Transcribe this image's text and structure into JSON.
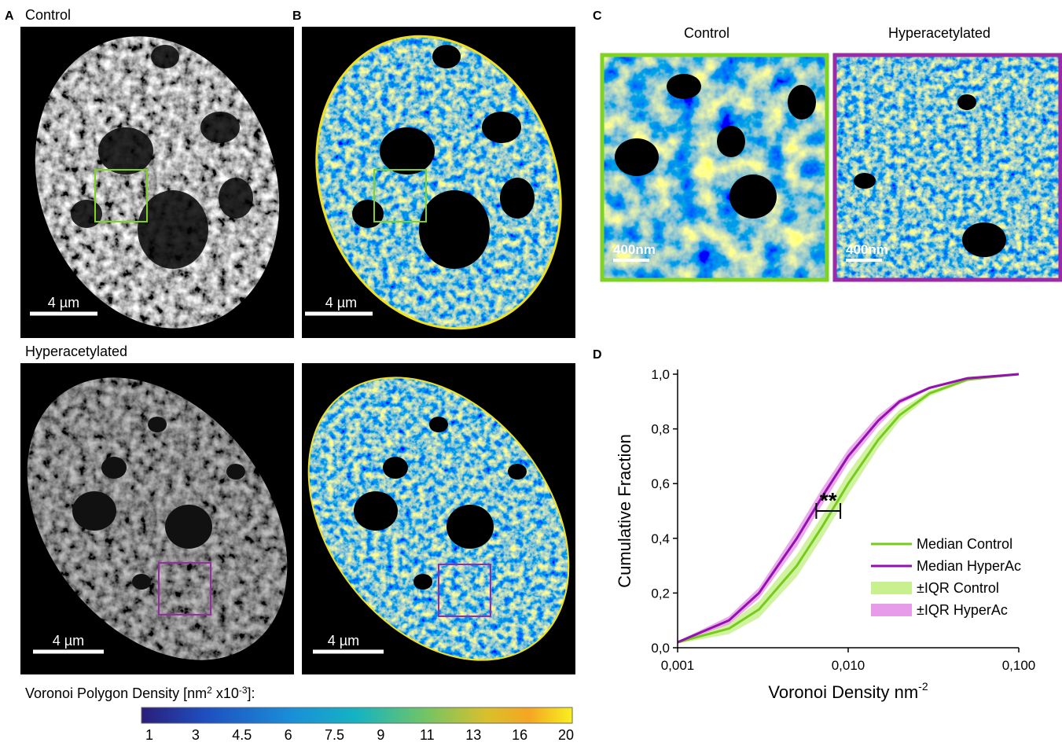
{
  "figure": {
    "panel_labels": [
      "A",
      "B",
      "C",
      "D"
    ],
    "row_labels": [
      "Control",
      "Hyperacetylated"
    ],
    "scale_bars": [
      "4 µm",
      "4 µm",
      "4 µm",
      "4 µm"
    ],
    "zoom_titles": [
      "Control",
      "Hyperacetylated"
    ],
    "zoom_scale_bars": [
      "400nm",
      "400nm"
    ],
    "colorbar": {
      "label_parts": [
        "Voronoi Polygon Density [nm",
        "2",
        " x10",
        "-3",
        "]:"
      ],
      "ticks": [
        "1",
        "3",
        "4.5",
        "6",
        "7.5",
        "9",
        "11",
        "13",
        "16",
        "20"
      ]
    }
  },
  "chart_data": {
    "type": "line",
    "xlabel": "Voronoi Density nm",
    "xlabel_sup": "-2",
    "ylabel": "Cumulative Fraction",
    "xscale": "log",
    "xlim": [
      0.001,
      0.1
    ],
    "xticks": [
      {
        "value": 0.001,
        "label": "0,001"
      },
      {
        "value": 0.01,
        "label": "0,010"
      },
      {
        "value": 0.1,
        "label": "0,100"
      }
    ],
    "ylim": [
      0,
      1
    ],
    "yticks": [
      {
        "value": 0,
        "label": "0,0"
      },
      {
        "value": 0.2,
        "label": "0,2"
      },
      {
        "value": 0.4,
        "label": "0,4"
      },
      {
        "value": 0.6,
        "label": "0,6"
      },
      {
        "value": 0.8,
        "label": "0,8"
      },
      {
        "value": 1,
        "label": "1,0"
      }
    ],
    "x": [
      0.001,
      0.002,
      0.003,
      0.005,
      0.007,
      0.01,
      0.015,
      0.02,
      0.03,
      0.05,
      0.1
    ],
    "series": [
      {
        "name": "Median Control",
        "color": "#76cc1e",
        "values": [
          0.02,
          0.07,
          0.14,
          0.3,
          0.44,
          0.6,
          0.76,
          0.85,
          0.93,
          0.98,
          1.0
        ]
      },
      {
        "name": "Median HyperAc",
        "color": "#9410b0",
        "values": [
          0.02,
          0.1,
          0.2,
          0.4,
          0.55,
          0.7,
          0.83,
          0.9,
          0.95,
          0.985,
          1.0
        ]
      },
      {
        "name": "±IQR Control",
        "color": "#c9f08e",
        "lower": [
          0.015,
          0.05,
          0.11,
          0.26,
          0.4,
          0.56,
          0.73,
          0.83,
          0.92,
          0.975,
          1.0
        ],
        "upper": [
          0.025,
          0.09,
          0.17,
          0.34,
          0.48,
          0.64,
          0.79,
          0.87,
          0.94,
          0.985,
          1.0
        ]
      },
      {
        "name": "±IQR HyperAc",
        "color": "#e69ce8",
        "lower": [
          0.017,
          0.085,
          0.18,
          0.37,
          0.52,
          0.675,
          0.81,
          0.89,
          0.945,
          0.98,
          1.0
        ],
        "upper": [
          0.023,
          0.115,
          0.22,
          0.43,
          0.58,
          0.725,
          0.85,
          0.91,
          0.955,
          0.99,
          1.0
        ]
      }
    ],
    "annotation": {
      "text": "**",
      "x": [
        0.0065,
        0.009
      ],
      "y": 0.5
    }
  }
}
